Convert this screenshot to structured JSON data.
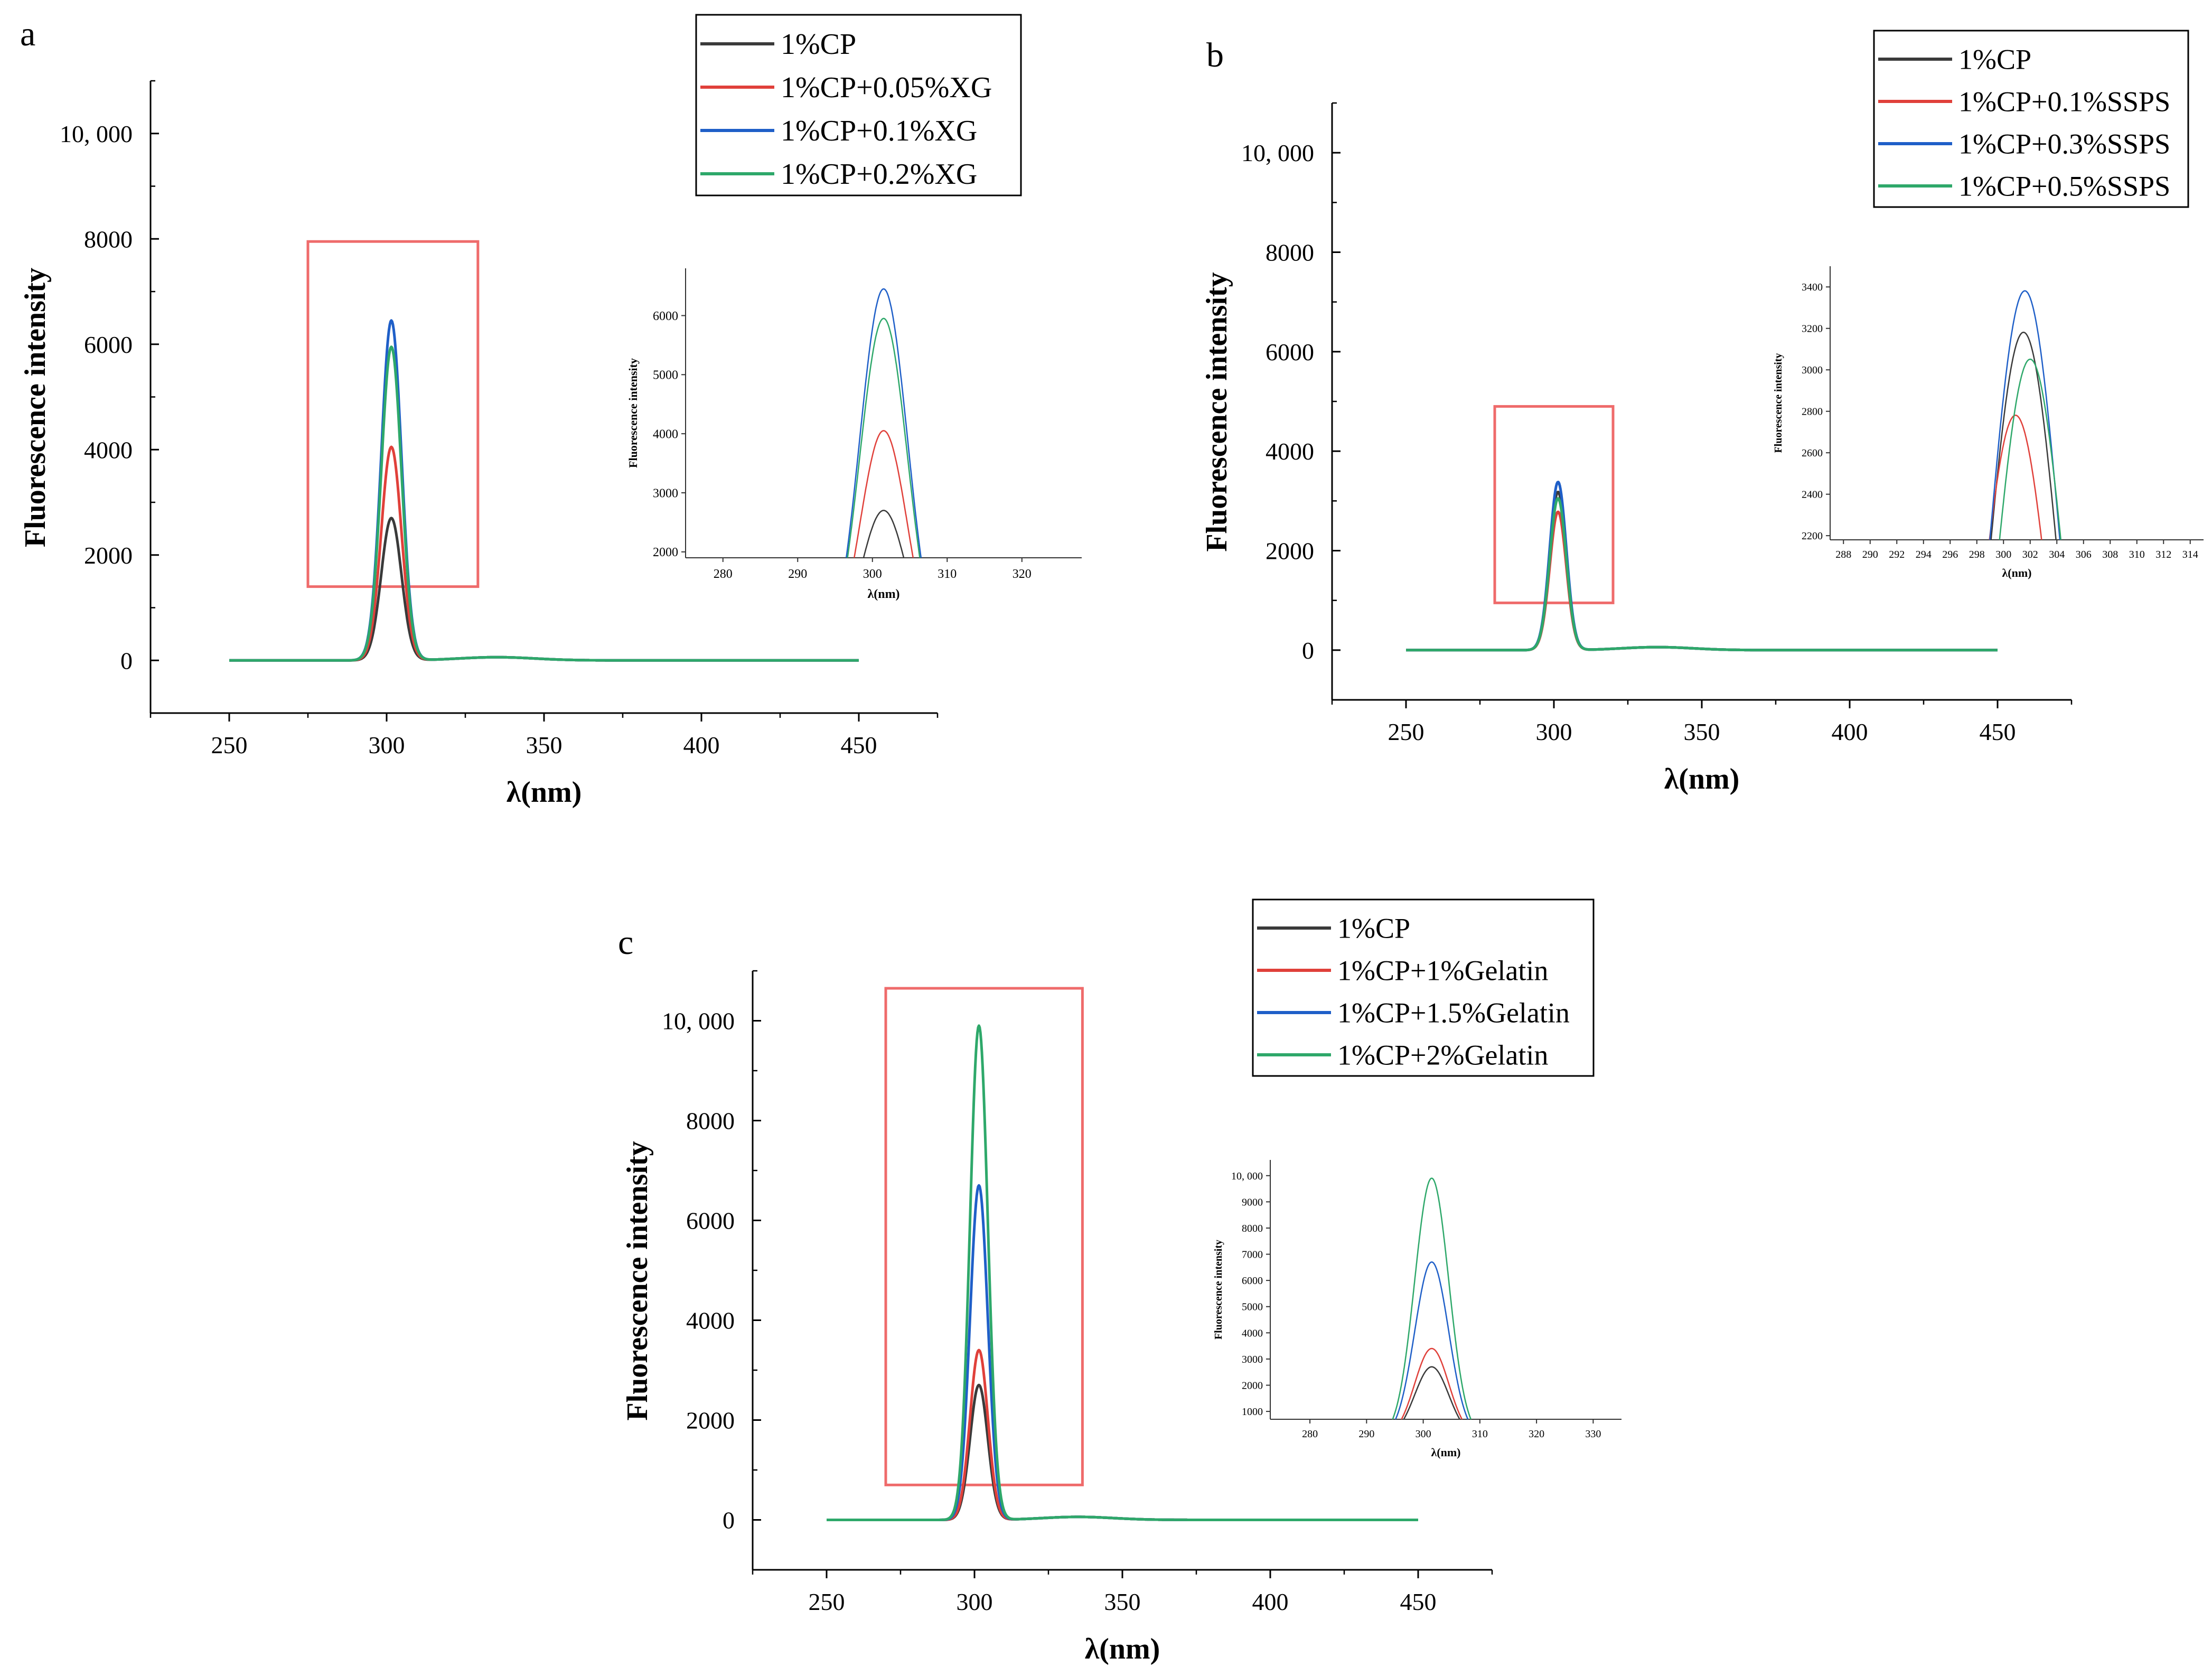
{
  "figure": {
    "panels_order": [
      "a",
      "b",
      "c"
    ]
  },
  "chart_data": [
    {
      "panel": "a",
      "type": "line",
      "title": "",
      "xlabel": "λ(nm)",
      "ylabel": "Fluorescence intensity",
      "xlim": [
        225,
        475
      ],
      "ylim": [
        -1000,
        11000
      ],
      "xticks": [
        250,
        300,
        350,
        400,
        450
      ],
      "xtick_labels": [
        "250",
        "300",
        "350",
        "400",
        "450"
      ],
      "yticks": [
        0,
        2000,
        4000,
        6000,
        8000,
        10000
      ],
      "ytick_labels": [
        "0",
        "2000",
        "4000",
        "6000",
        "8000",
        "10, 000"
      ],
      "x_range": [
        250,
        450
      ],
      "peak_x": 301.5,
      "peak_width": 3.2,
      "secondary_peak": {
        "x": 335,
        "width": 12,
        "value": 60
      },
      "grid": false,
      "legend_position": "top-right",
      "series": [
        {
          "name": "1%CP",
          "color": "#3a3a3a",
          "peak": 2700
        },
        {
          "name": "1%CP+0.05%XG",
          "color": "#e0403a",
          "peak": 4050
        },
        {
          "name": "1%CP+0.1%XG",
          "color": "#1f5fc8",
          "peak": 6450
        },
        {
          "name": "1%CP+0.2%XG",
          "color": "#2ea86a",
          "peak": 5950
        }
      ],
      "zoom_box": {
        "x": [
          275,
          329
        ],
        "y": [
          1400,
          7950
        ],
        "color": "#ef6b6b"
      },
      "inset": {
        "xlabel": "λ(nm)",
        "ylabel": "Fluorescence intensity",
        "xlim": [
          275,
          328
        ],
        "ylim": [
          1900,
          6800
        ],
        "xticks": [
          280,
          290,
          300,
          310,
          320
        ],
        "xtick_labels": [
          "280",
          "290",
          "300",
          "310",
          "320"
        ],
        "yticks": [
          2000,
          3000,
          4000,
          5000,
          6000
        ],
        "ytick_labels": [
          "2000",
          "3000",
          "4000",
          "5000",
          "6000"
        ]
      }
    },
    {
      "panel": "b",
      "type": "line",
      "title": "",
      "xlabel": "λ(nm)",
      "ylabel": "Fluorescence intensity",
      "xlim": [
        225,
        475
      ],
      "ylim": [
        -1000,
        11000
      ],
      "xticks": [
        250,
        300,
        350,
        400,
        450
      ],
      "xtick_labels": [
        "250",
        "300",
        "350",
        "400",
        "450"
      ],
      "yticks": [
        0,
        2000,
        4000,
        6000,
        8000,
        10000
      ],
      "ytick_labels": [
        "0",
        "2000",
        "4000",
        "6000",
        "8000",
        "10, 000"
      ],
      "x_range": [
        250,
        450
      ],
      "peak_x": 301.4,
      "peak_width": 2.8,
      "secondary_peak": {
        "x": 335,
        "width": 12,
        "value": 60
      },
      "grid": false,
      "legend_position": "top-right",
      "series": [
        {
          "name": "1%CP",
          "color": "#3a3a3a",
          "peak": 3180
        },
        {
          "name": "1%CP+0.1%SSPS",
          "color": "#e0403a",
          "peak": 2780
        },
        {
          "name": "1%CP+0.3%SSPS",
          "color": "#1f5fc8",
          "peak": 3380
        },
        {
          "name": "1%CP+0.5%SSPS",
          "color": "#2ea86a",
          "peak": 3050
        }
      ],
      "zoom_box": {
        "x": [
          280,
          320
        ],
        "y": [
          950,
          4900
        ],
        "color": "#ef6b6b"
      },
      "inset": {
        "xlabel": "λ(nm)",
        "ylabel": "Fluorescence intensity",
        "xlim": [
          287,
          315
        ],
        "ylim": [
          2180,
          3500
        ],
        "xticks": [
          288,
          290,
          292,
          294,
          296,
          298,
          300,
          302,
          304,
          306,
          308,
          310,
          312,
          314
        ],
        "xtick_labels": [
          "288",
          "290",
          "292",
          "294",
          "296",
          "298",
          "300",
          "302",
          "304",
          "306",
          "308",
          "310",
          "312",
          "314"
        ],
        "yticks": [
          2200,
          2400,
          2600,
          2800,
          3000,
          3200,
          3400
        ],
        "ytick_labels": [
          "2200",
          "2400",
          "2600",
          "2800",
          "3000",
          "3200",
          "3400"
        ],
        "peak_x_per_series": [
          301.5,
          300.9,
          301.6,
          302.0
        ]
      }
    },
    {
      "panel": "c",
      "type": "line",
      "title": "",
      "xlabel": "λ(nm)",
      "ylabel": "Fluorescence intensity",
      "xlim": [
        225,
        475
      ],
      "ylim": [
        -1000,
        11000
      ],
      "xticks": [
        250,
        300,
        350,
        400,
        450
      ],
      "xtick_labels": [
        "250",
        "300",
        "350",
        "400",
        "450"
      ],
      "yticks": [
        0,
        2000,
        4000,
        6000,
        8000,
        10000
      ],
      "ytick_labels": [
        "0",
        "2000",
        "4000",
        "6000",
        "8000",
        "10, 000"
      ],
      "x_range": [
        250,
        450
      ],
      "peak_x": 301.5,
      "peak_width": 3.0,
      "secondary_peak": {
        "x": 335,
        "width": 12,
        "value": 60
      },
      "grid": false,
      "legend_position": "top-right",
      "series": [
        {
          "name": "1%CP",
          "color": "#3a3a3a",
          "peak": 2700
        },
        {
          "name": "1%CP+1%Gelatin",
          "color": "#e0403a",
          "peak": 3400
        },
        {
          "name": "1%CP+1.5%Gelatin",
          "color": "#1f5fc8",
          "peak": 6700
        },
        {
          "name": "1%CP+2%Gelatin",
          "color": "#2ea86a",
          "peak": 9900
        }
      ],
      "zoom_box": {
        "x": [
          270,
          336.5
        ],
        "y": [
          700,
          10650
        ],
        "color": "#ef6b6b"
      },
      "inset": {
        "xlabel": "λ(nm)",
        "ylabel": "Fluorescence intensity",
        "xlim": [
          273,
          335
        ],
        "ylim": [
          700,
          10600
        ],
        "xticks": [
          280,
          290,
          300,
          310,
          320,
          330
        ],
        "xtick_labels": [
          "280",
          "290",
          "300",
          "310",
          "320",
          "330"
        ],
        "yticks": [
          1000,
          2000,
          3000,
          4000,
          5000,
          6000,
          7000,
          8000,
          9000,
          10000
        ],
        "ytick_labels": [
          "1000",
          "2000",
          "3000",
          "4000",
          "5000",
          "6000",
          "7000",
          "8000",
          "9000",
          "10, 000"
        ]
      }
    }
  ]
}
